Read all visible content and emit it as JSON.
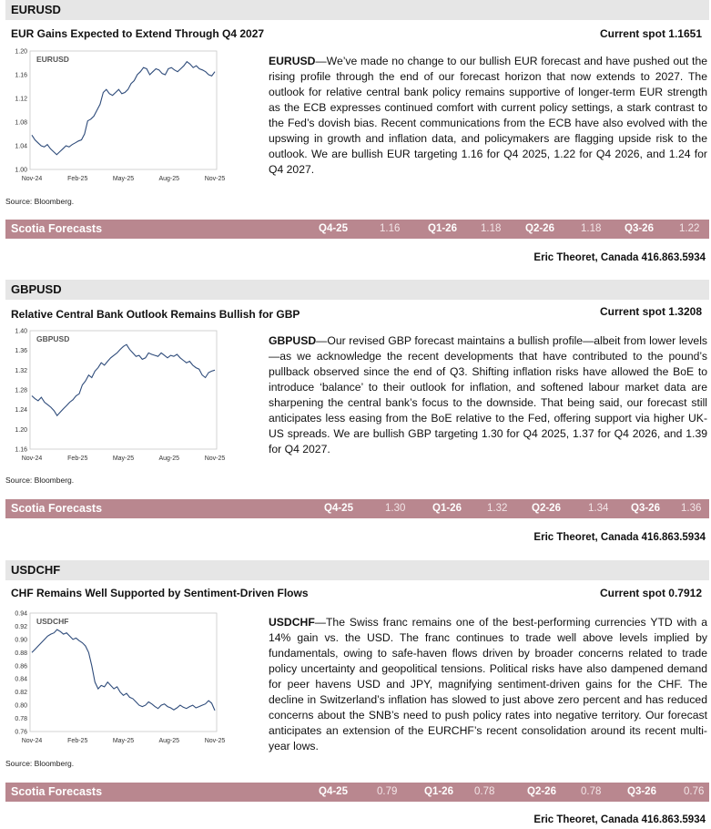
{
  "sections": [
    {
      "pair": "EURUSD",
      "title": "EUR Gains Expected to Extend Through Q4 2027",
      "spot": "Current spot 1.1651",
      "source": "Source: Bloomberg.",
      "lead": "EURUSD",
      "text": "—We’ve made no change to our bullish EUR forecast and have pushed out the rising profile through the end of our forecast horizon that now extends to 2027. The outlook for relative central bank policy remains supportive of longer-term EUR strength as the ECB expresses continued comfort with current policy settings, a stark contrast to the Fed’s dovish bias. Recent communications from the ECB have also evolved with the upswing in growth and inflation data, and policymakers are flagging upside risk to the outlook. We are bullish EUR targeting 1.16 for Q4 2025, 1.22 for Q4 2026, and 1.24 for Q4 2027.",
      "forecast_title": "Scotia Forecasts",
      "forecasts": [
        {
          "q": "Q4-25",
          "v": "1.16"
        },
        {
          "q": "Q1-26",
          "v": "1.18"
        },
        {
          "q": "Q2-26",
          "v": "1.18"
        },
        {
          "q": "Q3-26",
          "v": "1.22"
        }
      ],
      "author": "Eric Theoret, Canada 416.863.5934"
    },
    {
      "pair": "GBPUSD",
      "title": "Relative Central Bank Outlook Remains Bullish for GBP",
      "spot": "Current spot 1.3208",
      "source": "Source: Bloomberg.",
      "lead": "GBPUSD",
      "text": "—Our revised GBP forecast maintains a bullish profile—albeit from lower levels—as we acknowledge the recent developments that have contributed to the pound’s pullback observed since the end of Q3. Shifting inflation risks have allowed the BoE to introduce ‘balance’ to their outlook for inflation, and softened labour market data are sharpening the central bank’s focus to the downside. That being said, our forecast still anticipates less easing from the BoE relative to the Fed, offering support via higher UK-US spreads. We are bullish GBP targeting 1.30 for Q4 2025, 1.37 for Q4 2026, and 1.39 for Q4 2027.",
      "forecast_title": "Scotia Forecasts",
      "forecasts": [
        {
          "q": "Q4-25",
          "v": "1.30"
        },
        {
          "q": "Q1-26",
          "v": "1.32"
        },
        {
          "q": "Q2-26",
          "v": "1.34"
        },
        {
          "q": "Q3-26",
          "v": "1.36"
        }
      ],
      "author": "Eric Theoret, Canada 416.863.5934"
    },
    {
      "pair": "USDCHF",
      "title": "CHF Remains Well Supported by Sentiment-Driven Flows",
      "spot": "Current spot 0.7912",
      "source": "Source: Bloomberg.",
      "lead": "USDCHF",
      "text": "—The Swiss franc remains one of the best-performing currencies YTD with a 14% gain vs. the USD. The franc continues to trade well above levels implied by fundamentals, owing to safe-haven flows driven by broader concerns related to trade policy uncertainty and geopolitical tensions. Political risks have also dampened demand for peer havens USD and JPY, magnifying sentiment-driven gains for the CHF. The decline in Switzerland’s inflation has slowed to just above zero percent and has reduced concerns about the SNB’s need to push policy rates into negative territory. Our forecast anticipates an extension of the EURCHF’s recent consolidation around its recent multi-year lows.",
      "forecast_title": "Scotia Forecasts",
      "forecasts": [
        {
          "q": "Q4-25",
          "v": "0.79"
        },
        {
          "q": "Q1-26",
          "v": "0.78"
        },
        {
          "q": "Q2-26",
          "v": "0.78"
        },
        {
          "q": "Q3-26",
          "v": "0.76"
        }
      ],
      "author": "Eric Theoret, Canada 416.863.5934"
    }
  ],
  "chart_data": [
    {
      "type": "line",
      "title": "EURUSD",
      "x_ticks": [
        "Nov-24",
        "Feb-25",
        "May-25",
        "Aug-25",
        "Nov-25"
      ],
      "y_ticks": [
        "1.20",
        "1.16",
        "1.12",
        "1.08",
        "1.04",
        "1.00"
      ],
      "ylim": [
        1.0,
        1.2
      ],
      "series": [
        {
          "values": [
            1.058,
            1.05,
            1.045,
            1.04,
            1.038,
            1.042,
            1.035,
            1.03,
            1.025,
            1.03,
            1.035,
            1.04,
            1.038,
            1.042,
            1.045,
            1.048,
            1.05,
            1.06,
            1.082,
            1.085,
            1.09,
            1.1,
            1.11,
            1.13,
            1.135,
            1.128,
            1.125,
            1.13,
            1.135,
            1.128,
            1.13,
            1.135,
            1.145,
            1.15,
            1.16,
            1.165,
            1.172,
            1.17,
            1.16,
            1.165,
            1.17,
            1.168,
            1.162,
            1.16,
            1.17,
            1.172,
            1.168,
            1.165,
            1.17,
            1.175,
            1.182,
            1.178,
            1.172,
            1.175,
            1.17,
            1.168,
            1.165,
            1.16,
            1.158,
            1.165
          ]
        }
      ],
      "grid": false
    },
    {
      "type": "line",
      "title": "GBPUSD",
      "x_ticks": [
        "Nov-24",
        "Feb-25",
        "May-25",
        "Aug-25",
        "Nov-25"
      ],
      "y_ticks": [
        "1.40",
        "1.36",
        "1.32",
        "1.28",
        "1.24",
        "1.20",
        "1.16"
      ],
      "ylim": [
        1.16,
        1.4
      ],
      "series": [
        {
          "values": [
            1.268,
            1.262,
            1.258,
            1.265,
            1.255,
            1.25,
            1.245,
            1.238,
            1.228,
            1.235,
            1.242,
            1.248,
            1.255,
            1.26,
            1.268,
            1.272,
            1.29,
            1.298,
            1.31,
            1.305,
            1.318,
            1.325,
            1.335,
            1.33,
            1.338,
            1.345,
            1.35,
            1.355,
            1.362,
            1.368,
            1.372,
            1.362,
            1.355,
            1.348,
            1.35,
            1.342,
            1.345,
            1.355,
            1.352,
            1.35,
            1.348,
            1.355,
            1.35,
            1.345,
            1.35,
            1.348,
            1.352,
            1.345,
            1.34,
            1.335,
            1.338,
            1.33,
            1.325,
            1.322,
            1.31,
            1.305,
            1.315,
            1.318,
            1.32
          ]
        }
      ],
      "grid": false
    },
    {
      "type": "line",
      "title": "USDCHF",
      "x_ticks": [
        "Nov-24",
        "Feb-25",
        "May-25",
        "Aug-25",
        "Nov-25"
      ],
      "y_ticks": [
        "0.94",
        "0.92",
        "0.90",
        "0.88",
        "0.86",
        "0.84",
        "0.82",
        "0.80",
        "0.78",
        "0.76"
      ],
      "ylim": [
        0.76,
        0.94
      ],
      "series": [
        {
          "values": [
            0.88,
            0.885,
            0.89,
            0.895,
            0.9,
            0.905,
            0.908,
            0.91,
            0.915,
            0.912,
            0.908,
            0.91,
            0.905,
            0.9,
            0.902,
            0.898,
            0.895,
            0.89,
            0.88,
            0.86,
            0.835,
            0.825,
            0.83,
            0.828,
            0.835,
            0.83,
            0.825,
            0.828,
            0.82,
            0.815,
            0.818,
            0.812,
            0.81,
            0.805,
            0.8,
            0.798,
            0.8,
            0.805,
            0.802,
            0.798,
            0.795,
            0.8,
            0.802,
            0.798,
            0.796,
            0.793,
            0.796,
            0.8,
            0.797,
            0.795,
            0.798,
            0.8,
            0.796,
            0.798,
            0.8,
            0.802,
            0.807,
            0.803,
            0.792
          ]
        }
      ],
      "grid": false
    }
  ]
}
